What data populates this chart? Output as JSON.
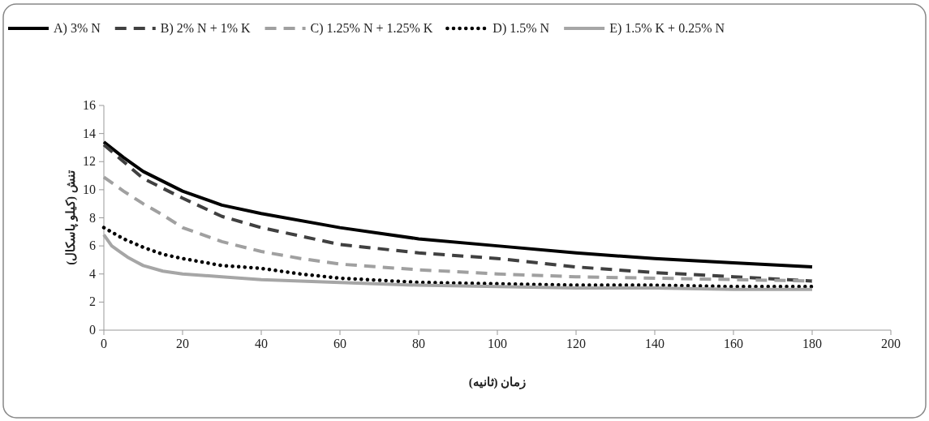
{
  "chart_data": {
    "type": "line",
    "xlabel": "زمان (ثانیه)",
    "ylabel": "تنش (کیلو پاسکال)",
    "xlim": [
      0,
      200
    ],
    "xticks": [
      0,
      20,
      40,
      60,
      80,
      100,
      120,
      140,
      160,
      180,
      200
    ],
    "ylim": [
      0,
      16
    ],
    "yticks": [
      0,
      2,
      4,
      6,
      8,
      10,
      12,
      14,
      16
    ],
    "grid": false,
    "legend": "top",
    "marker": "none",
    "series": [
      {
        "name": "A) 3% N",
        "color": "#000000",
        "line_style": "solid",
        "x": [
          0,
          5,
          10,
          20,
          30,
          40,
          60,
          80,
          100,
          120,
          140,
          160,
          180
        ],
        "values": [
          13.4,
          12.3,
          11.3,
          9.9,
          8.9,
          8.3,
          7.3,
          6.5,
          6.0,
          5.5,
          5.1,
          4.8,
          4.5
        ]
      },
      {
        "name": "B) 2% N + 1% K",
        "color": "#404040",
        "line_style": "dashed",
        "x": [
          0,
          5,
          10,
          20,
          30,
          40,
          50,
          60,
          80,
          100,
          120,
          140,
          160,
          180
        ],
        "values": [
          13.2,
          12.0,
          10.8,
          9.4,
          8.1,
          7.3,
          6.7,
          6.1,
          5.5,
          5.1,
          4.5,
          4.1,
          3.8,
          3.5
        ]
      },
      {
        "name": "C) 1.25% N + 1.25% K",
        "color": "#a0a0a0",
        "line_style": "dashed",
        "x": [
          0,
          5,
          10,
          15,
          20,
          30,
          40,
          50,
          60,
          70,
          80,
          100,
          120,
          140,
          160,
          180
        ],
        "values": [
          10.9,
          9.9,
          9.0,
          8.2,
          7.3,
          6.3,
          5.6,
          5.1,
          4.7,
          4.5,
          4.3,
          4.0,
          3.8,
          3.7,
          3.6,
          3.5
        ]
      },
      {
        "name": "D) 1.5% N",
        "color": "#000000",
        "line_style": "dotted",
        "x": [
          0,
          5,
          10,
          15,
          20,
          30,
          40,
          50,
          60,
          80,
          100,
          120,
          140,
          160,
          180
        ],
        "values": [
          7.3,
          6.5,
          5.9,
          5.4,
          5.1,
          4.6,
          4.4,
          4.0,
          3.7,
          3.4,
          3.3,
          3.2,
          3.2,
          3.1,
          3.1
        ]
      },
      {
        "name": "E) 1.5% K + 0.25% N",
        "color": "#a6a6a6",
        "line_style": "solid",
        "x": [
          0,
          2,
          4,
          6,
          8,
          10,
          15,
          20,
          30,
          40,
          50,
          60,
          80,
          100,
          120,
          140,
          160,
          180
        ],
        "values": [
          6.8,
          6.0,
          5.6,
          5.2,
          4.9,
          4.6,
          4.2,
          4.0,
          3.8,
          3.6,
          3.5,
          3.4,
          3.2,
          3.1,
          3.0,
          3.0,
          2.9,
          2.9
        ]
      }
    ]
  }
}
